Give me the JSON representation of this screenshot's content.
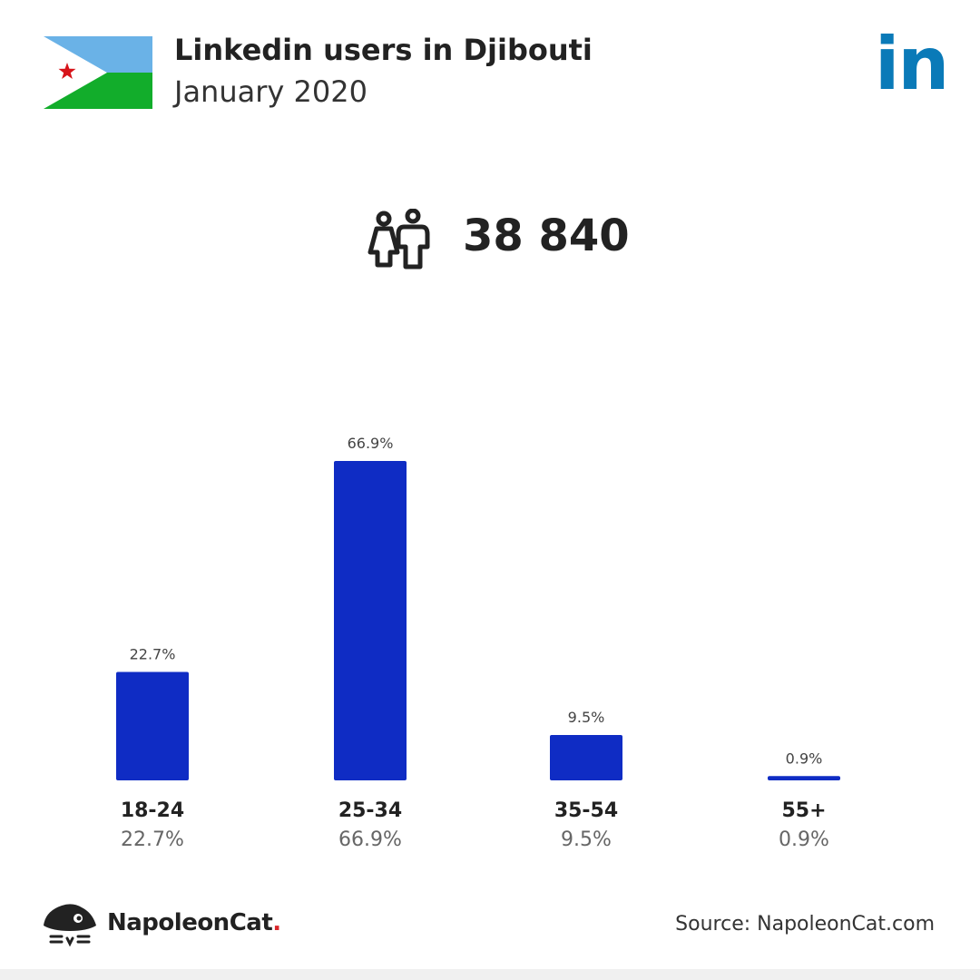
{
  "header": {
    "title": "Linkedin users in Djibouti",
    "subtitle": "January 2020",
    "logo_text": "in"
  },
  "summary": {
    "users_count": "38 840"
  },
  "colors": {
    "bar": "#0f2cc4",
    "linkedin": "#0a7ab8",
    "flag_blue": "#6ab2e7",
    "flag_green": "#12ad2b",
    "flag_star": "#d7141a"
  },
  "chart_data": {
    "type": "bar",
    "title": "",
    "xlabel": "",
    "ylabel": "",
    "categories": [
      "18-24",
      "25-34",
      "35-54",
      "55+"
    ],
    "values": [
      22.7,
      66.9,
      9.5,
      0.9
    ],
    "value_labels": [
      "22.7%",
      "66.9%",
      "9.5%",
      "0.9%"
    ],
    "ylim": [
      0,
      66.9
    ],
    "grid": false,
    "legend": "none"
  },
  "footer": {
    "brand": "NapoleonCat",
    "brand_dot": ".",
    "source": "Source: NapoleonCat.com"
  }
}
